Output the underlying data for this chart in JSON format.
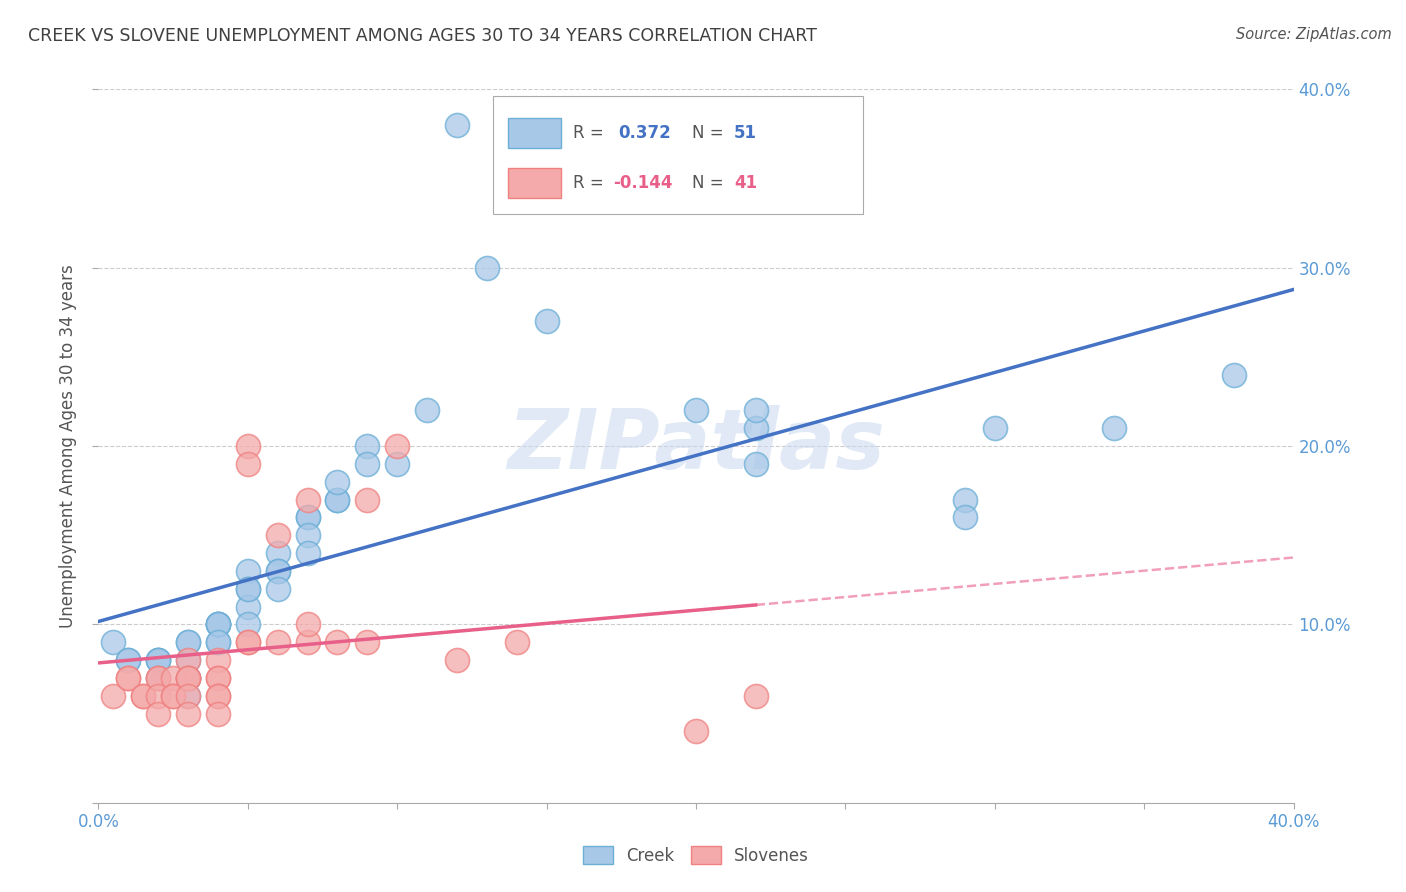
{
  "title": "CREEK VS SLOVENE UNEMPLOYMENT AMONG AGES 30 TO 34 YEARS CORRELATION CHART",
  "source": "Source: ZipAtlas.com",
  "ylabel": "Unemployment Among Ages 30 to 34 years",
  "xlim": [
    0.0,
    0.4
  ],
  "ylim": [
    0.0,
    0.4
  ],
  "xticks": [
    0.0,
    0.05,
    0.1,
    0.15,
    0.2,
    0.25,
    0.3,
    0.35,
    0.4
  ],
  "yticks": [
    0.0,
    0.1,
    0.2,
    0.3,
    0.4
  ],
  "xticklabels": [
    "0.0%",
    "",
    "",
    "",
    "",
    "",
    "",
    "",
    "40.0%"
  ],
  "creek_color": "#a8c8e8",
  "slovene_color": "#f4aaaa",
  "creek_edge_color": "#6baed6",
  "slovene_edge_color": "#f08080",
  "creek_line_color": "#4472c4",
  "slovene_line_color": "#e8608a",
  "background_color": "#ffffff",
  "grid_color": "#cccccc",
  "title_color": "#404040",
  "axis_label_color": "#5b9bd5",
  "watermark": "ZIPatlas",
  "creek_x": [
    0.005,
    0.01,
    0.01,
    0.02,
    0.02,
    0.02,
    0.02,
    0.03,
    0.03,
    0.03,
    0.03,
    0.03,
    0.03,
    0.04,
    0.04,
    0.04,
    0.04,
    0.04,
    0.04,
    0.05,
    0.05,
    0.05,
    0.05,
    0.05,
    0.06,
    0.06,
    0.06,
    0.06,
    0.07,
    0.07,
    0.07,
    0.07,
    0.08,
    0.08,
    0.08,
    0.09,
    0.09,
    0.1,
    0.11,
    0.12,
    0.13,
    0.15,
    0.2,
    0.22,
    0.22,
    0.29,
    0.3,
    0.34,
    0.38,
    0.22,
    0.29
  ],
  "creek_y": [
    0.09,
    0.08,
    0.08,
    0.08,
    0.08,
    0.08,
    0.07,
    0.08,
    0.09,
    0.09,
    0.07,
    0.07,
    0.06,
    0.09,
    0.1,
    0.1,
    0.1,
    0.1,
    0.09,
    0.13,
    0.12,
    0.11,
    0.12,
    0.1,
    0.14,
    0.13,
    0.13,
    0.12,
    0.16,
    0.16,
    0.15,
    0.14,
    0.17,
    0.17,
    0.18,
    0.2,
    0.19,
    0.19,
    0.22,
    0.38,
    0.3,
    0.27,
    0.22,
    0.21,
    0.22,
    0.17,
    0.21,
    0.21,
    0.24,
    0.19,
    0.16
  ],
  "slovene_x": [
    0.005,
    0.01,
    0.01,
    0.015,
    0.015,
    0.02,
    0.02,
    0.02,
    0.02,
    0.025,
    0.025,
    0.025,
    0.03,
    0.03,
    0.03,
    0.03,
    0.03,
    0.03,
    0.04,
    0.04,
    0.04,
    0.04,
    0.04,
    0.04,
    0.05,
    0.05,
    0.05,
    0.05,
    0.06,
    0.06,
    0.07,
    0.07,
    0.07,
    0.08,
    0.09,
    0.09,
    0.1,
    0.12,
    0.14,
    0.2,
    0.22
  ],
  "slovene_y": [
    0.06,
    0.07,
    0.07,
    0.06,
    0.06,
    0.07,
    0.07,
    0.06,
    0.05,
    0.07,
    0.06,
    0.06,
    0.08,
    0.07,
    0.07,
    0.07,
    0.06,
    0.05,
    0.08,
    0.07,
    0.07,
    0.06,
    0.06,
    0.05,
    0.2,
    0.19,
    0.09,
    0.09,
    0.15,
    0.09,
    0.09,
    0.1,
    0.17,
    0.09,
    0.09,
    0.17,
    0.2,
    0.08,
    0.09,
    0.04,
    0.06
  ]
}
